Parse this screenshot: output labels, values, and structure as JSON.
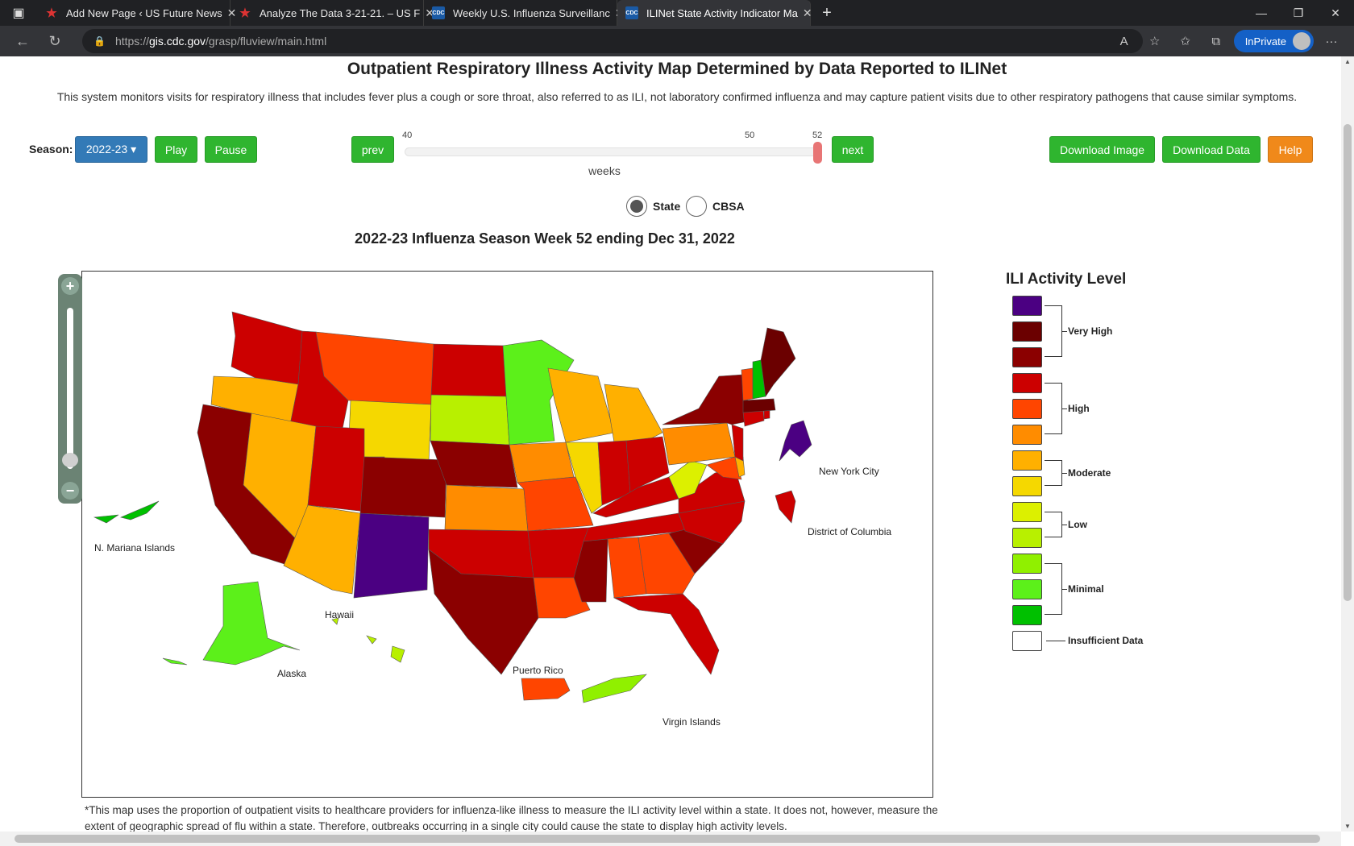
{
  "browser": {
    "tabs": [
      {
        "title": "Add New Page ‹ US Future News",
        "favicon": "star-icon",
        "active": false
      },
      {
        "title": "Analyze The Data 3-21-21. – US F",
        "favicon": "star-icon",
        "active": false
      },
      {
        "title": "Weekly U.S. Influenza Surveillanc",
        "favicon": "cdc-icon",
        "active": false
      },
      {
        "title": "ILINet State Activity Indicator Ma",
        "favicon": "cdc-icon",
        "active": true
      }
    ],
    "url_prefix": "https://",
    "url_host": "gis.cdc.gov",
    "url_path": "/grasp/fluview/main.html",
    "inprivate_label": "InPrivate"
  },
  "page": {
    "title": "Outpatient Respiratory Illness Activity Map Determined by Data Reported to ILINet",
    "description": "This system monitors visits for respiratory illness that includes fever plus a cough or sore throat, also referred to as ILI, not laboratory confirmed influenza and may capture patient visits due to other respiratory pathogens that cause similar symptoms.",
    "controls": {
      "season_label": "Season:",
      "season_value": "2022-23 ▾",
      "play": "Play",
      "pause": "Pause",
      "prev": "prev",
      "next": "next",
      "slider_ticks": [
        "40",
        "50",
        "52"
      ],
      "slider_unit": "weeks",
      "slider_value": 52,
      "download_image": "Download Image",
      "download_data": "Download Data",
      "help": "Help"
    },
    "view_toggle": {
      "state": "State",
      "cbsa": "CBSA",
      "selected": "State"
    },
    "map": {
      "title": "2022-23 Influenza Season Week 52 ending Dec 31, 2022",
      "labels": {
        "nyc": "New York City",
        "dc": "District of Columbia",
        "nmi": "N. Mariana Islands",
        "hawaii": "Hawaii",
        "alaska": "Alaska",
        "pr": "Puerto Rico",
        "vi": "Virgin Islands"
      }
    },
    "legend": {
      "title": "ILI Activity Level",
      "levels": [
        "#4b0082",
        "#6b0000",
        "#8b0000",
        "#cc0000",
        "#ff4500",
        "#ff8c00",
        "#ffb000",
        "#f5d800",
        "#dcf000",
        "#b8f000",
        "#90f000",
        "#5cf01a",
        "#00c000",
        "#ffffff"
      ],
      "groups": {
        "very_high": "Very High",
        "high": "High",
        "moderate": "Moderate",
        "low": "Low",
        "minimal": "Minimal",
        "insufficient": "Insufficient Data"
      }
    },
    "footnote": "*This map uses the proportion of outpatient visits to healthcare providers for influenza-like illness to measure the ILI activity level within a state. It does not, however, measure the extent of geographic spread of flu within a state. Therefore, outbreaks occurring in a single city could cause the state to display high activity levels."
  }
}
